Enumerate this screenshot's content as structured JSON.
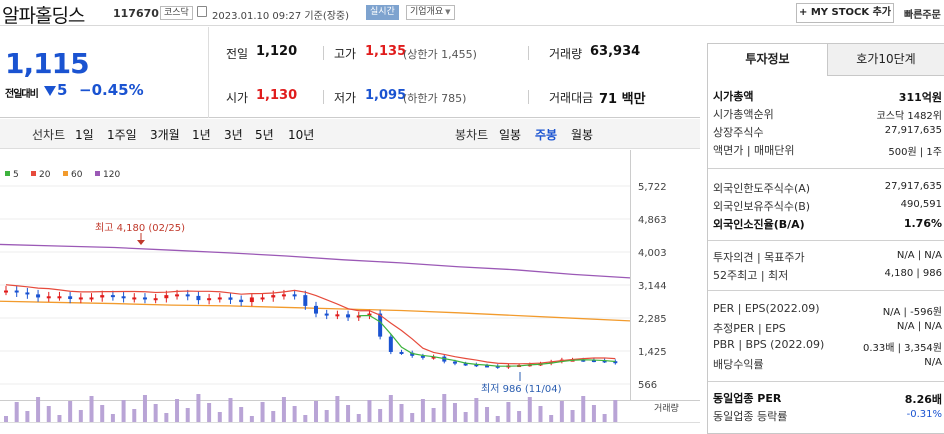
{
  "header": {
    "name": "알파홀딩스",
    "code": "117670",
    "market": "코스닥",
    "datetime": "2023.01.10 09:27 기준(장중)",
    "realtime": "실시간",
    "corp_info": "기업개요",
    "my_stock": "+ MY STOCK 추가",
    "quick": "빠른주문"
  },
  "quote": {
    "price": "1,115",
    "change_label": "전일대비",
    "change_value": "5",
    "change_pct": "−0.45%",
    "prev_label": "전일",
    "prev": "1,120",
    "high_label": "고가",
    "high": "1,135",
    "upper": "(상한가 1,455)",
    "volume_label": "거래량",
    "volume": "63,934",
    "open_label": "시가",
    "open": "1,130",
    "low_label": "저가",
    "low": "1,095",
    "lower": "(하한가 785)",
    "amount_label": "거래대금",
    "amount": "71 백만"
  },
  "periods": {
    "line_label": "선차트",
    "line_items": [
      "1일",
      "1주일",
      "3개월",
      "1년",
      "3년",
      "5년",
      "10년"
    ],
    "bong_label": "봉차트",
    "bong_items": [
      "일봉",
      "주봉",
      "월봉"
    ],
    "selected": "주봉"
  },
  "chart_data": {
    "type": "candlestick",
    "legend": [
      "5",
      "20",
      "60",
      "120"
    ],
    "legend_colors": [
      "#3db33d",
      "#e64b3c",
      "#f29b2d",
      "#9b59b6"
    ],
    "y_ticks": [
      "5,722",
      "4,863",
      "4,003",
      "3,144",
      "2,285",
      "1,425",
      "566"
    ],
    "y_tick_values": [
      5722,
      4863,
      4003,
      3144,
      2285,
      1425,
      566
    ],
    "max_label": "최고 4,180 (02/25)",
    "min_label": "최저 986 (11/04)",
    "volume_label": "거래량",
    "ma60": [
      2720,
      2690,
      2660,
      2620,
      2600,
      2560,
      2520,
      2480,
      2420,
      2350,
      2280,
      2210
    ],
    "ma120": [
      4200,
      4160,
      4120,
      4050,
      3980,
      3900,
      3800,
      3720,
      3620,
      3540,
      3420,
      3330
    ],
    "candles_close": [
      3000,
      2950,
      2900,
      2820,
      2850,
      2850,
      2780,
      2820,
      2820,
      2880,
      2850,
      2800,
      2820,
      2780,
      2800,
      2880,
      2900,
      2860,
      2750,
      2800,
      2820,
      2760,
      2700,
      2820,
      2820,
      2880,
      2900,
      2880,
      2600,
      2400,
      2350,
      2380,
      2300,
      2350,
      2400,
      1800,
      1400,
      1380,
      1300,
      1250,
      1280,
      1150,
      1100,
      1080,
      1050,
      1040,
      1000,
      1050,
      1060,
      1080,
      1100,
      1150,
      1200,
      1200,
      1190,
      1180,
      1160,
      1115
    ]
  },
  "right_panel": {
    "tab_invest": "투자정보",
    "tab_hoga": "호가10단계",
    "rows1": [
      {
        "label": "시가총액",
        "value": "311억원",
        "bold": true
      },
      {
        "label": "시가총액순위",
        "value": "코스닥 1482위"
      },
      {
        "label": "상장주식수",
        "value": "27,917,635"
      },
      {
        "label": "액면가 | 매매단위",
        "value": "500원 | 1주"
      }
    ],
    "rows2": [
      {
        "label": "외국인한도주식수(A)",
        "value": "27,917,635"
      },
      {
        "label": "외국인보유주식수(B)",
        "value": "490,591"
      },
      {
        "label": "외국인소진율(B/A)",
        "value": "1.76%",
        "bold": true
      }
    ],
    "rows3": [
      {
        "label": "투자의견 | 목표주가",
        "value": "N/A | N/A"
      },
      {
        "label": "52주최고 | 최저",
        "value": "4,180 | 986"
      }
    ],
    "rows4": [
      {
        "label": "PER | EPS(2022.09)",
        "value": "N/A | -596원"
      },
      {
        "label": "추정PER | EPS",
        "value": "N/A | N/A"
      },
      {
        "label": "PBR | BPS (2022.09)",
        "value": "0.33배 | 3,354원"
      },
      {
        "label": "배당수익률",
        "value": "N/A"
      }
    ],
    "rows5": [
      {
        "label": "동일업종 PER",
        "value": "8.26배",
        "bold": true
      },
      {
        "label": "동일업종 등락률",
        "value": "-0.31%",
        "blue": true
      }
    ]
  }
}
